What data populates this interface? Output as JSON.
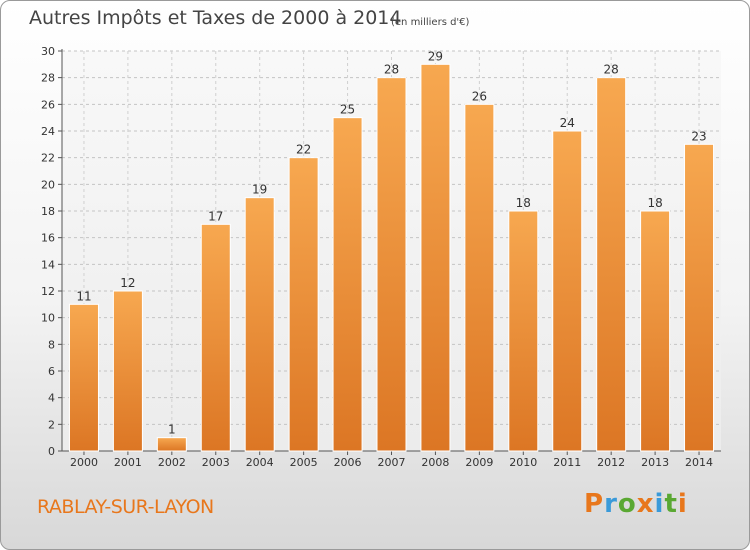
{
  "chart_data": {
    "type": "bar",
    "title": "Autres Impôts et Taxes de 2000 à 2014",
    "subtitle": "(en milliers d'€)",
    "categories": [
      "2000",
      "2001",
      "2002",
      "2003",
      "2004",
      "2005",
      "2006",
      "2007",
      "2008",
      "2009",
      "2010",
      "2011",
      "2012",
      "2013",
      "2014"
    ],
    "values": [
      11,
      12,
      1,
      17,
      19,
      22,
      25,
      28,
      29,
      26,
      18,
      24,
      28,
      18,
      23
    ],
    "ylim": [
      0,
      30
    ],
    "yticks": [
      0,
      2,
      4,
      6,
      8,
      10,
      12,
      14,
      16,
      18,
      20,
      22,
      24,
      26,
      28,
      30
    ],
    "xlabel": "",
    "ylabel": "",
    "grid": true,
    "bar_color_light": "#f7a850",
    "bar_color_dark": "#dc7624"
  },
  "footer": {
    "commune": "RABLAY-SUR-LAYON",
    "logo_text": "Proxiti",
    "logo_colors": [
      "#e8771c",
      "#3a9ad9",
      "#5aa832",
      "#e8771c",
      "#3a9ad9",
      "#5aa832",
      "#e8771c"
    ]
  },
  "colors": {
    "accent": "#e8771c",
    "text": "#444444"
  }
}
